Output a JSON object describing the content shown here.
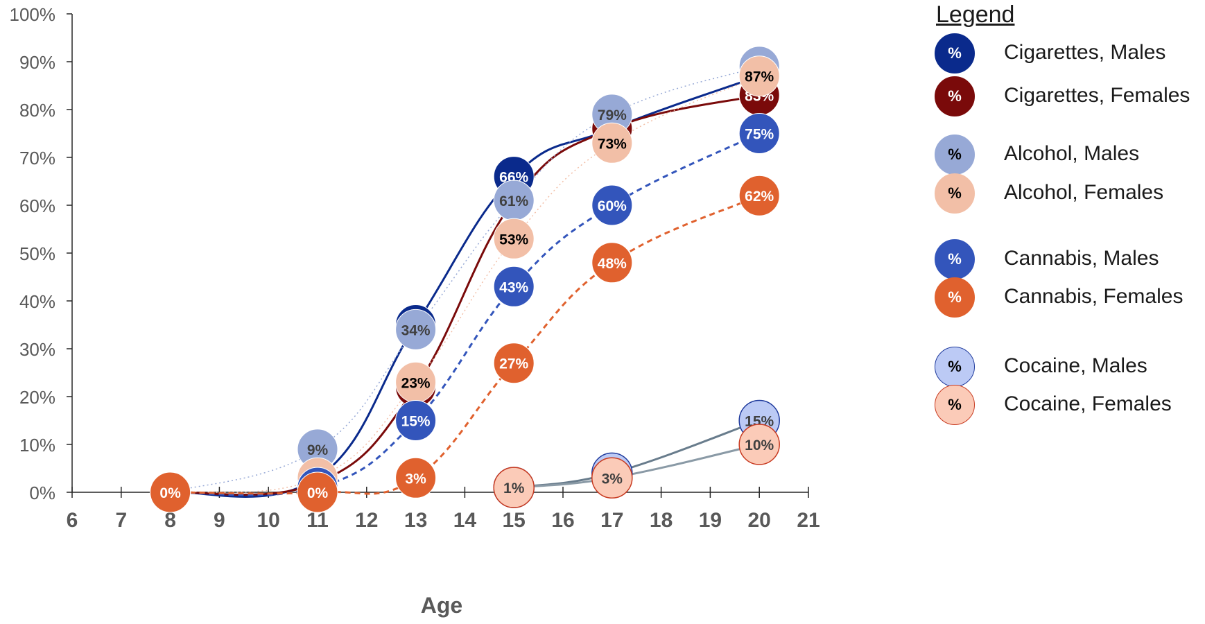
{
  "chart_data": {
    "type": "line",
    "xlabel": "Age",
    "ylabel": "",
    "xlim": [
      6,
      21
    ],
    "ylim": [
      0,
      100
    ],
    "x_ticks": [
      6,
      7,
      8,
      9,
      10,
      11,
      12,
      13,
      14,
      15,
      16,
      17,
      18,
      19,
      20,
      21
    ],
    "y_ticks": [
      "0%",
      "10%",
      "20%",
      "30%",
      "40%",
      "50%",
      "60%",
      "70%",
      "80%",
      "90%",
      "100%"
    ],
    "grid": false,
    "legend_position": "right",
    "legend_title": "Legend",
    "series": [
      {
        "name": "Cigarettes, Males",
        "color": "#0a2a8c",
        "label_color": "#ffffff",
        "line_style": "solid",
        "points": [
          [
            8,
            0
          ],
          [
            11,
            3
          ],
          [
            13,
            35
          ],
          [
            15,
            66
          ],
          [
            17,
            76
          ],
          [
            20,
            87
          ]
        ]
      },
      {
        "name": "Cigarettes, Females",
        "color": "#7a0a0a",
        "label_color": "#ffffff",
        "line_style": "solid",
        "points": [
          [
            8,
            0
          ],
          [
            11,
            2
          ],
          [
            13,
            22
          ],
          [
            15,
            61
          ],
          [
            17,
            76
          ],
          [
            20,
            83
          ]
        ]
      },
      {
        "name": "Alcohol, Males",
        "color": "#97a9d6",
        "label_color": "#404040",
        "line_style": "dotted",
        "points": [
          [
            8,
            0
          ],
          [
            11,
            9
          ],
          [
            13,
            34
          ],
          [
            15,
            61
          ],
          [
            17,
            79
          ],
          [
            20,
            89
          ]
        ]
      },
      {
        "name": "Alcohol, Females",
        "color": "#f2bfa7",
        "label_color": "#000000",
        "line_style": "dotted",
        "points": [
          [
            8,
            0
          ],
          [
            11,
            3
          ],
          [
            13,
            23
          ],
          [
            15,
            53
          ],
          [
            17,
            73
          ],
          [
            20,
            87
          ]
        ]
      },
      {
        "name": "Cannabis, Males",
        "color": "#3355bb",
        "label_color": "#ffffff",
        "line_style": "dashed",
        "points": [
          [
            8,
            0
          ],
          [
            11,
            1
          ],
          [
            13,
            15
          ],
          [
            15,
            43
          ],
          [
            17,
            60
          ],
          [
            20,
            75
          ]
        ]
      },
      {
        "name": "Cannabis, Females",
        "color": "#e0612e",
        "label_color": "#ffffff",
        "line_style": "dashed",
        "points": [
          [
            8,
            0
          ],
          [
            11,
            0
          ],
          [
            13,
            3
          ],
          [
            15,
            27
          ],
          [
            17,
            48
          ],
          [
            20,
            62
          ]
        ]
      },
      {
        "name": "Cocaine, Males",
        "color": "#bccaf5",
        "label_color": "#404040",
        "line_style": "solid",
        "stroke": "#1f3a9c",
        "line_color": "#687c8c",
        "points": [
          [
            15,
            1
          ],
          [
            17,
            4
          ],
          [
            20,
            15
          ]
        ]
      },
      {
        "name": "Cocaine, Females",
        "color": "#fbcbb8",
        "label_color": "#404040",
        "line_style": "solid",
        "stroke": "#c83a20",
        "line_color": "#8a9aa6",
        "points": [
          [
            15,
            1
          ],
          [
            17,
            3
          ],
          [
            20,
            10
          ]
        ]
      }
    ]
  },
  "legend": {
    "title": "Legend",
    "symbol": "%",
    "items": [
      {
        "label": "Cigarettes, Males",
        "fill": "#0a2a8c",
        "text_color": "#ffffff",
        "border": "#0a2a8c"
      },
      {
        "label": "Cigarettes, Females",
        "fill": "#7a0a0a",
        "text_color": "#ffffff",
        "border": "#7a0a0a"
      },
      {
        "label": "Alcohol, Males",
        "fill": "#97a9d6",
        "text_color": "#000000",
        "border": "#97a9d6"
      },
      {
        "label": "Alcohol, Females",
        "fill": "#f2bfa7",
        "text_color": "#000000",
        "border": "#f2bfa7"
      },
      {
        "label": "Cannabis, Males",
        "fill": "#3355bb",
        "text_color": "#ffffff",
        "border": "#3355bb"
      },
      {
        "label": "Cannabis, Females",
        "fill": "#e0612e",
        "text_color": "#ffffff",
        "border": "#e0612e"
      },
      {
        "label": "Cocaine, Males",
        "fill": "#bccaf5",
        "text_color": "#000000",
        "border": "#1f3a9c"
      },
      {
        "label": "Cocaine, Females",
        "fill": "#fbcbb8",
        "text_color": "#000000",
        "border": "#c83a20"
      }
    ]
  }
}
